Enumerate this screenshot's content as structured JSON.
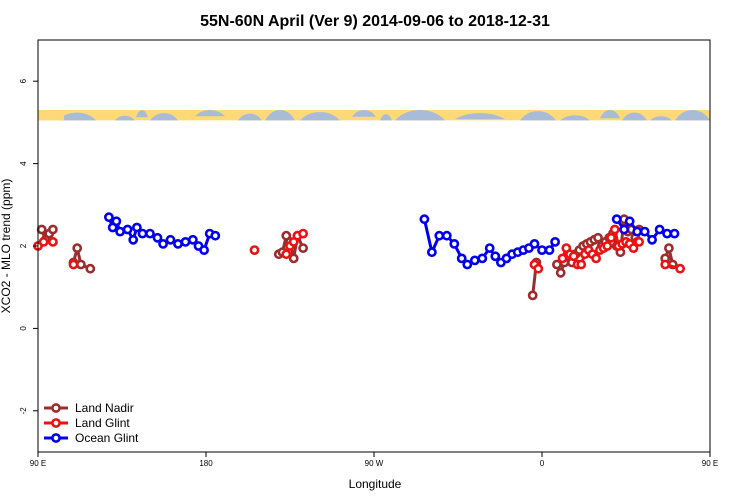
{
  "chart_data": {
    "type": "line",
    "title": "55N-60N April (Ver 9)   2014-09-06 to 2018-12-31",
    "xlabel": "Longitude",
    "ylabel": "XCO2 - MLO trend (ppm)",
    "xlim": [
      -90,
      270
    ],
    "ylim": [
      -3,
      7
    ],
    "x_ticks": [
      {
        "value": -90,
        "label": "90 E"
      },
      {
        "value": 0,
        "label": "180"
      },
      {
        "value": 90,
        "label": "90 W"
      },
      {
        "value": 180,
        "label": "0"
      },
      {
        "value": 270,
        "label": "90 E"
      },
      {
        "value": 360,
        "label": "180"
      }
    ],
    "y_ticks": [
      {
        "value": -2,
        "label": "-2"
      },
      {
        "value": 0,
        "label": "0"
      },
      {
        "value": 2,
        "label": "2"
      },
      {
        "value": 4,
        "label": "4"
      },
      {
        "value": 6,
        "label": "6"
      }
    ],
    "landmask_band": {
      "y_low": 5.05,
      "y_high": 5.3,
      "land_color": "#ffd878",
      "ocean_color": "#a8bcd8"
    },
    "legend": {
      "position": "bottom-left"
    },
    "series": [
      {
        "name": "Land Nadir",
        "color": "#9b2d2d",
        "segments": [
          [
            [
              -88,
              2.4
            ],
            [
              -86,
              2.15
            ],
            [
              -84,
              2.3
            ],
            [
              -82,
              2.4
            ]
          ],
          [
            [
              -71,
              1.6
            ],
            [
              -69,
              1.95
            ],
            [
              -67,
              1.55
            ],
            [
              -62,
              1.45
            ]
          ],
          [
            [
              39,
              1.8
            ],
            [
              41,
              1.85
            ],
            [
              43,
              2.25
            ],
            [
              45,
              2.1
            ],
            [
              47,
              1.7
            ],
            [
              49,
              2.25
            ],
            [
              52,
              1.95
            ]
          ],
          [
            [
              175,
              0.8
            ],
            [
              177,
              1.6
            ]
          ],
          [
            [
              188,
              1.55
            ],
            [
              190,
              1.35
            ],
            [
              192,
              1.6
            ],
            [
              194,
              1.75
            ],
            [
              196,
              1.6
            ],
            [
              198,
              1.8
            ],
            [
              200,
              1.9
            ],
            [
              202,
              2.0
            ],
            [
              204,
              2.05
            ],
            [
              206,
              2.1
            ],
            [
              208,
              2.15
            ],
            [
              210,
              2.2
            ],
            [
              212,
              2.0
            ],
            [
              214,
              2.1
            ],
            [
              216,
              2.2
            ],
            [
              218,
              2.3
            ],
            [
              220,
              2.0
            ],
            [
              222,
              1.85
            ],
            [
              224,
              2.65
            ],
            [
              226,
              2.35
            ],
            [
              228,
              2.4
            ],
            [
              230,
              2.2
            ],
            [
              232,
              2.4
            ]
          ],
          [
            [
              246,
              1.7
            ],
            [
              248,
              1.95
            ],
            [
              250,
              1.55
            ]
          ]
        ]
      },
      {
        "name": "Land Glint",
        "color": "#ee1111",
        "segments": [
          [
            [
              -90,
              2.0
            ],
            [
              -87,
              2.1
            ],
            [
              -82,
              2.1
            ]
          ],
          [
            [
              -71,
              1.55
            ]
          ],
          [
            [
              26,
              1.9
            ]
          ],
          [
            [
              43,
              1.8
            ],
            [
              45,
              2.0
            ],
            [
              47,
              2.1
            ],
            [
              49,
              2.25
            ],
            [
              52,
              2.3
            ]
          ],
          [
            [
              176,
              1.55
            ],
            [
              178,
              1.45
            ]
          ],
          [
            [
              191,
              1.7
            ],
            [
              193,
              1.95
            ],
            [
              195,
              1.8
            ],
            [
              197,
              1.75
            ],
            [
              199,
              1.55
            ],
            [
              201,
              1.55
            ],
            [
              203,
              1.8
            ],
            [
              205,
              1.9
            ],
            [
              207,
              1.8
            ],
            [
              209,
              1.7
            ],
            [
              211,
              1.9
            ],
            [
              213,
              1.95
            ],
            [
              215,
              2.0
            ],
            [
              217,
              2.2
            ],
            [
              219,
              2.4
            ],
            [
              221,
              2.0
            ],
            [
              223,
              2.05
            ],
            [
              225,
              2.1
            ],
            [
              227,
              2.05
            ],
            [
              229,
              1.95
            ],
            [
              231,
              2.1
            ],
            [
              232,
              2.1
            ]
          ],
          [
            [
              246,
              1.55
            ],
            [
              254,
              1.45
            ]
          ]
        ]
      },
      {
        "name": "Ocean Glint",
        "color": "#0000ee",
        "segments": [
          [
            [
              -52,
              2.7
            ],
            [
              -50,
              2.45
            ],
            [
              -48,
              2.6
            ],
            [
              -46,
              2.35
            ],
            [
              -42,
              2.4
            ],
            [
              -39,
              2.15
            ],
            [
              -37,
              2.45
            ],
            [
              -34,
              2.3
            ],
            [
              -30,
              2.3
            ],
            [
              -26,
              2.2
            ],
            [
              -23,
              2.05
            ],
            [
              -19,
              2.15
            ],
            [
              -15,
              2.05
            ],
            [
              -11,
              2.1
            ],
            [
              -7,
              2.15
            ],
            [
              -4,
              2.0
            ],
            [
              -1,
              1.9
            ],
            [
              2,
              2.3
            ],
            [
              5,
              2.25
            ]
          ],
          [
            [
              117,
              2.65
            ],
            [
              121,
              1.85
            ],
            [
              125,
              2.25
            ],
            [
              129,
              2.25
            ],
            [
              133,
              2.05
            ],
            [
              137,
              1.7
            ],
            [
              140,
              1.55
            ],
            [
              144,
              1.65
            ],
            [
              148,
              1.7
            ],
            [
              152,
              1.95
            ],
            [
              155,
              1.75
            ],
            [
              158,
              1.6
            ],
            [
              161,
              1.7
            ],
            [
              164,
              1.8
            ],
            [
              167,
              1.85
            ],
            [
              170,
              1.9
            ],
            [
              173,
              1.95
            ],
            [
              176,
              2.05
            ],
            [
              180,
              1.9
            ],
            [
              184,
              1.9
            ],
            [
              187,
              2.1
            ]
          ],
          [
            [
              220,
              2.65
            ],
            [
              224,
              2.4
            ],
            [
              227,
              2.6
            ],
            [
              231,
              2.35
            ],
            [
              235,
              2.35
            ],
            [
              239,
              2.15
            ],
            [
              243,
              2.4
            ],
            [
              247,
              2.3
            ],
            [
              251,
              2.3
            ]
          ]
        ]
      }
    ]
  }
}
